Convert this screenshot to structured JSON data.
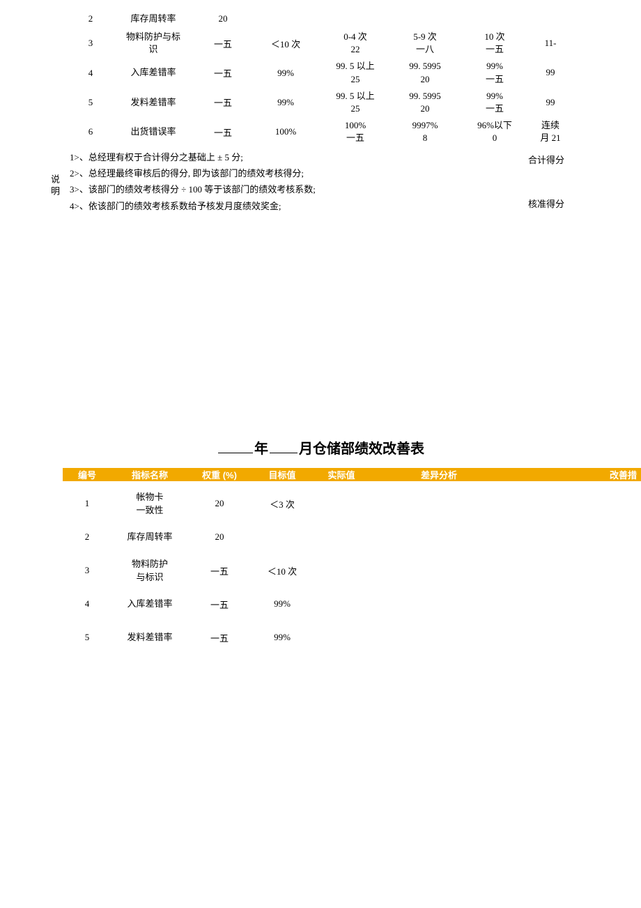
{
  "colors": {
    "header_bg": "#f2a900",
    "header_text": "#ffffff",
    "body_text": "#000000",
    "background": "#ffffff"
  },
  "table1_rows": [
    {
      "num": "2",
      "name": "库存周转率",
      "weight": "20",
      "target": "",
      "s1t": "",
      "s1b": "",
      "s2t": "",
      "s2b": "",
      "s3t": "",
      "s3b": "",
      "s4t": "",
      "s4b": ""
    },
    {
      "num": "3",
      "name": "物料防护与标\n识",
      "weight": "一五",
      "target": "＜10 次",
      "s1t": "0-4 次",
      "s1b": "22",
      "s2t": "5-9 次",
      "s2b": "一八",
      "s3t": "10 次",
      "s3b": "一五",
      "s4t": "11-",
      "s4b": ""
    },
    {
      "num": "4",
      "name": "入库差错率",
      "weight": "一五",
      "target": "99%",
      "s1t": "99. 5 以上",
      "s1b": "25",
      "s2t": "99. 5995",
      "s2b": "20",
      "s3t": "99%",
      "s3b": "一五",
      "s4t": "99",
      "s4b": ""
    },
    {
      "num": "5",
      "name": "发料差错率",
      "weight": "一五",
      "target": "99%",
      "s1t": "99. 5 以上",
      "s1b": "25",
      "s2t": "99. 5995",
      "s2b": "20",
      "s3t": "99%",
      "s3b": "一五",
      "s4t": "99",
      "s4b": ""
    },
    {
      "num": "6",
      "name": "出货错误率",
      "weight": "一五",
      "target": "100%",
      "s1t": "100%",
      "s1b": "一五",
      "s2t": "9997%",
      "s2b": "8",
      "s3t": "96%以下",
      "s3b": "0",
      "s4t": "连续",
      "s4b": "月 21"
    }
  ],
  "notes": {
    "side": "说\n明",
    "n1": "1>、总经理有权于合计得分之基础上 ± 5 分;",
    "n2": "2>、总经理最终审核后的得分, 即为该部门的绩效考核得分;",
    "n3": "3>、该部门的绩效考核得分 ÷ 100 等于该部门的绩效考核系数;",
    "n4": "4>、依该部门的绩效考核系数给予核发月度绩效奖金;",
    "r1": "合计得分",
    "r2": "核准得分"
  },
  "title2": {
    "prefix": "",
    "mid": "年",
    "suffix": "月仓储部绩效改善表"
  },
  "table2": {
    "headers": {
      "num": "编号",
      "name": "指标名称",
      "weight": "权重 (%)",
      "target": "目标值",
      "actual": "实际值",
      "diff": "差异分析",
      "improve": "改善措"
    },
    "rows": [
      {
        "num": "1",
        "name": "帐物卡\n一致性",
        "weight": "20",
        "target": "＜3 次"
      },
      {
        "num": "2",
        "name": "库存周转率",
        "weight": "20",
        "target": ""
      },
      {
        "num": "3",
        "name": "物料防护\n与标识",
        "weight": "一五",
        "target": "＜10 次"
      },
      {
        "num": "4",
        "name": "入库差错率",
        "weight": "一五",
        "target": "99%"
      },
      {
        "num": "5",
        "name": "发料差错率",
        "weight": "一五",
        "target": "99%"
      }
    ]
  }
}
